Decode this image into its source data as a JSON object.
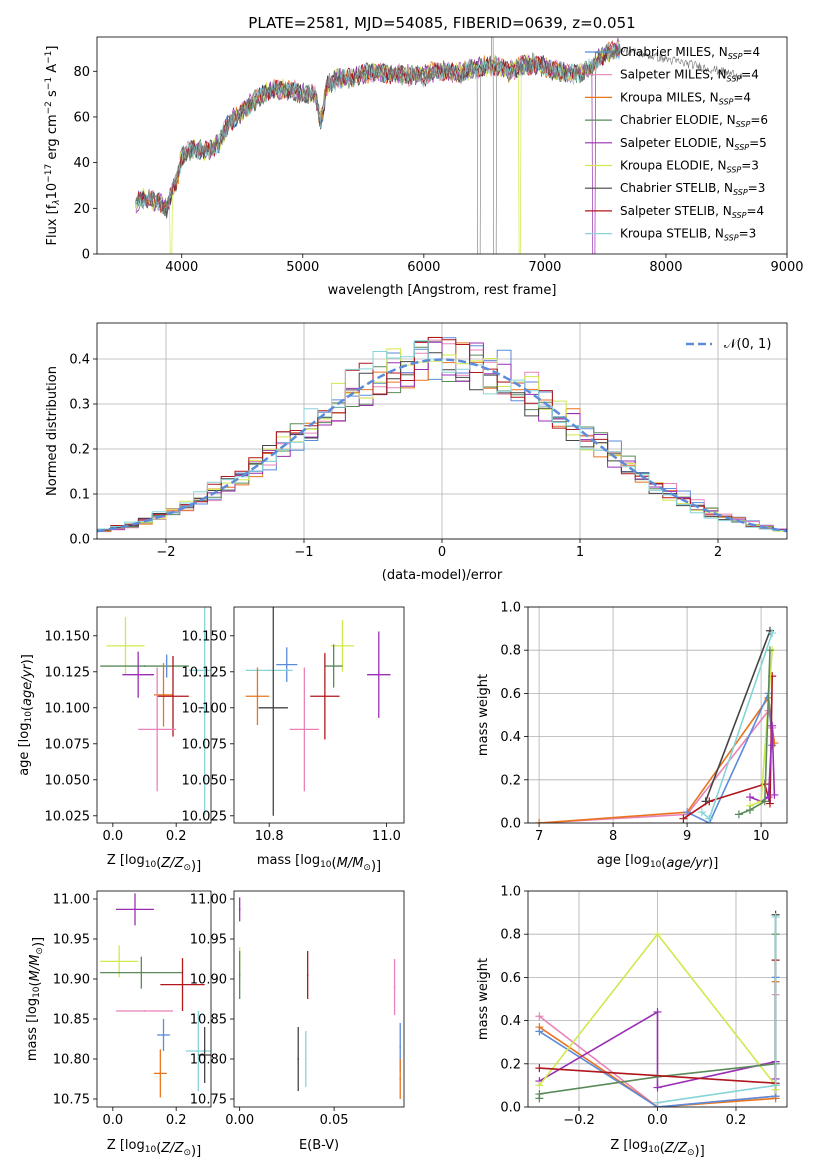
{
  "figure_title": "PLATE=2581, MJD=54085, FIBERID=0639, z=0.051",
  "colors": {
    "chabrier_miles": "#5b8bd9",
    "salpeter_miles": "#e882b8",
    "kroupa_miles": "#e8741e",
    "chabrier_elodie": "#5a8a5a",
    "salpeter_elodie": "#9a2fb4",
    "kroupa_elodie": "#d2e84e",
    "chabrier_stelib": "#444444",
    "salpeter_stelib": "#b0161c",
    "kroupa_stelib": "#86d4d8",
    "normal_curve": "#5b8bd9"
  },
  "chart_data": [
    {
      "id": "spectrum",
      "type": "line",
      "title": "PLATE=2581, MJD=54085, FIBERID=0639, z=0.051",
      "xlabel": "wavelength [Angstrom, rest frame]",
      "ylabel_parts": {
        "a": "Flux [f",
        "b": "λ",
        "c": "10",
        "d": "−17",
        "e": " erg cm",
        "f": "−2",
        "g": " s",
        "h": "−1",
        "i": " A",
        "j": "−1",
        "k": "]"
      },
      "xlim": [
        3300,
        9000
      ],
      "ylim": [
        0,
        95
      ],
      "xticks": [
        4000,
        5000,
        6000,
        7000,
        8000,
        9000
      ],
      "yticks": [
        0,
        20,
        40,
        60,
        80
      ],
      "legend": {
        "position": "right",
        "nssp_sub": "SSP"
      },
      "spectrum_envelope": {
        "x": [
          3620,
          3700,
          3800,
          3880,
          3920,
          3960,
          4000,
          4100,
          4200,
          4300,
          4400,
          4500,
          4600,
          4700,
          4800,
          4900,
          5000,
          5100,
          5150,
          5200,
          5300,
          5400,
          5500,
          5600,
          5700,
          5800,
          5900,
          6000,
          6100,
          6200,
          6300,
          6400,
          6500,
          6600,
          6700,
          6800,
          6900,
          7000,
          7100,
          7200,
          7300,
          7400,
          7450,
          7500,
          7600
        ],
        "y": [
          22,
          25,
          23,
          20,
          28,
          32,
          43,
          46,
          45,
          48,
          58,
          62,
          67,
          71,
          72,
          72,
          70,
          70,
          58,
          74,
          77,
          77,
          79,
          80,
          79,
          79,
          78,
          78,
          80,
          80,
          79,
          81,
          82,
          83,
          80,
          82,
          83,
          82,
          80,
          79,
          79,
          82,
          86,
          88,
          90
        ]
      },
      "series": [
        {
          "name": "Chabrier MILES, N",
          "nssp": "=4",
          "color": "#5b8bd9"
        },
        {
          "name": "Salpeter MILES, N",
          "nssp": "=4",
          "color": "#e882b8"
        },
        {
          "name": "Kroupa MILES, N",
          "nssp": "=4",
          "color": "#e8741e"
        },
        {
          "name": "Chabrier ELODIE, N",
          "nssp": "=6",
          "color": "#5a8a5a"
        },
        {
          "name": "Salpeter ELODIE, N",
          "nssp": "=5",
          "color": "#9a2fb4"
        },
        {
          "name": "Kroupa ELODIE, N",
          "nssp": "=3",
          "color": "#d2e84e"
        },
        {
          "name": "Chabrier STELIB, N",
          "nssp": "=3",
          "color": "#444444"
        },
        {
          "name": "Salpeter STELIB, N",
          "nssp": "=4",
          "color": "#b0161c"
        },
        {
          "name": "Kroupa STELIB, N",
          "nssp": "=3",
          "color": "#86d4d8"
        }
      ]
    },
    {
      "id": "residuals",
      "type": "line",
      "xlabel": "(data-model)/error",
      "ylabel": "Normed distribution",
      "xlim": [
        -2.5,
        2.5
      ],
      "ylim": [
        0,
        0.48
      ],
      "xticks": [
        -2,
        -1,
        0,
        1,
        2
      ],
      "yticks": [
        0.0,
        0.1,
        0.2,
        0.3,
        0.4
      ],
      "xticklabels": [
        "−2",
        "−1",
        "0",
        "1",
        "2"
      ],
      "yticklabels": [
        "0.0",
        "0.1",
        "0.2",
        "0.3",
        "0.4"
      ],
      "grid": true,
      "legend": {
        "position": "top-right",
        "label": "𝒩(0, 1)"
      },
      "bin_edges_range": [
        -2.5,
        2.5
      ],
      "bin_count": 50,
      "histogram_sigma": 1.0,
      "series_colors": [
        "#5b8bd9",
        "#e882b8",
        "#e8741e",
        "#5a8a5a",
        "#9a2fb4",
        "#d2e84e",
        "#444444",
        "#b0161c",
        "#86d4d8"
      ]
    },
    {
      "id": "age_vs_Z",
      "type": "scatter",
      "xlabel": "Z [log",
      "xlabel_sub": "10",
      "xlabel_tail": "(Z/Z",
      "xlabel_sun": "⊙",
      "xlabel_end": ")]",
      "ylabel": "age  [log",
      "ylabel_sub": "10",
      "ylabel_tail": "(age/yr)]",
      "xlim": [
        -0.05,
        0.31
      ],
      "ylim": [
        10.02,
        10.17
      ],
      "xticks": [
        0.0,
        0.2
      ],
      "yticks": [
        10.025,
        10.05,
        10.075,
        10.1,
        10.125,
        10.15
      ],
      "xticklabels": [
        "0.0",
        "0.2"
      ],
      "yticklabels": [
        "10.025",
        "10.050",
        "10.075",
        "10.100",
        "10.125",
        "10.150"
      ],
      "points": [
        {
          "x": 0.04,
          "y": 10.143,
          "xerr": 0.06,
          "yerr": 0.02,
          "color": "#d2e84e"
        },
        {
          "x": 0.1,
          "y": 10.129,
          "xerr": 0.14,
          "yerr": 0.0,
          "color": "#5a8a5a"
        },
        {
          "x": 0.17,
          "y": 10.129,
          "xerr": 0.0,
          "yerr": 0.008,
          "color": "#5b8bd9"
        },
        {
          "x": 0.08,
          "y": 10.123,
          "xerr": 0.05,
          "yerr": 0.016,
          "color": "#9a2fb4"
        },
        {
          "x": 0.16,
          "y": 10.109,
          "xerr": 0.03,
          "yerr": 0.022,
          "color": "#e8741e"
        },
        {
          "x": 0.19,
          "y": 10.108,
          "xerr": 0.05,
          "yerr": 0.028,
          "color": "#b0161c"
        },
        {
          "x": 0.28,
          "y": 10.1,
          "xerr": 0.01,
          "yerr": 0.0,
          "color": "#444444"
        },
        {
          "x": 0.29,
          "y": 10.126,
          "xerr": 0.05,
          "yerr": 0.1,
          "color": "#86d4d8"
        },
        {
          "x": 0.14,
          "y": 10.085,
          "xerr": 0.06,
          "yerr": 0.043,
          "color": "#e882b8"
        }
      ]
    },
    {
      "id": "age_vs_mass",
      "type": "scatter",
      "xlabel": "mass [log",
      "xlabel_sub": "10",
      "xlabel_tail": "(M/M",
      "xlabel_sun": "⊙",
      "xlabel_end": ")]",
      "xlim": [
        10.74,
        11.03
      ],
      "ylim": [
        10.02,
        10.17
      ],
      "xticks": [
        10.8,
        11.0
      ],
      "yticks": [
        10.025,
        10.05,
        10.075,
        10.1,
        10.125,
        10.15
      ],
      "xticklabels": [
        "10.8",
        "11.0"
      ],
      "yticklabels": [
        "10.025",
        "10.050",
        "10.075",
        "10.100",
        "10.125",
        "10.150"
      ],
      "points": [
        {
          "x": 10.925,
          "y": 10.143,
          "xerr": 0.02,
          "yerr": 0.018,
          "color": "#d2e84e"
        },
        {
          "x": 10.91,
          "y": 10.129,
          "xerr": 0.015,
          "yerr": 0.015,
          "color": "#5a8a5a"
        },
        {
          "x": 10.83,
          "y": 10.13,
          "xerr": 0.018,
          "yerr": 0.012,
          "color": "#5b8bd9"
        },
        {
          "x": 10.8,
          "y": 10.126,
          "xerr": 0.04,
          "yerr": 0.0,
          "color": "#86d4d8"
        },
        {
          "x": 10.987,
          "y": 10.123,
          "xerr": 0.02,
          "yerr": 0.03,
          "color": "#9a2fb4"
        },
        {
          "x": 10.78,
          "y": 10.108,
          "xerr": 0.02,
          "yerr": 0.02,
          "color": "#e8741e"
        },
        {
          "x": 10.895,
          "y": 10.108,
          "xerr": 0.025,
          "yerr": 0.03,
          "color": "#b0161c"
        },
        {
          "x": 10.807,
          "y": 10.1,
          "xerr": 0.025,
          "yerr": 0.075,
          "color": "#444444"
        },
        {
          "x": 10.86,
          "y": 10.085,
          "xerr": 0.025,
          "yerr": 0.043,
          "color": "#e882b8"
        }
      ]
    },
    {
      "id": "weight_vs_age",
      "type": "line",
      "xlabel": "age  [log",
      "xlabel_sub": "10",
      "xlabel_tail": "(age/yr)]",
      "ylabel": "mass weight",
      "xlim": [
        6.85,
        10.35
      ],
      "ylim": [
        0,
        1.0
      ],
      "xticks": [
        7,
        8,
        9,
        10
      ],
      "yticks": [
        0.0,
        0.2,
        0.4,
        0.6,
        0.8,
        1.0
      ],
      "xticklabels": [
        "7",
        "8",
        "9",
        "10"
      ],
      "yticklabels": [
        "0.0",
        "0.2",
        "0.4",
        "0.6",
        "0.8",
        "1.0"
      ],
      "grid": true,
      "series": [
        {
          "color": "#e882b8",
          "x": [
            7.0,
            9.0,
            10.1,
            10.15
          ],
          "y": [
            0.0,
            0.04,
            0.52,
            0.44
          ]
        },
        {
          "color": "#e8741e",
          "x": [
            7.0,
            9.0,
            10.1,
            10.18
          ],
          "y": [
            0.0,
            0.05,
            0.58,
            0.37
          ]
        },
        {
          "color": "#5b8bd9",
          "x": [
            9.0,
            9.3,
            10.1,
            10.15
          ],
          "y": [
            0.05,
            0.0,
            0.6,
            0.36
          ]
        },
        {
          "color": "#b0161c",
          "x": [
            8.95,
            9.3,
            10.05,
            10.12,
            10.15
          ],
          "y": [
            0.02,
            0.1,
            0.18,
            0.09,
            0.68
          ]
        },
        {
          "color": "#9a2fb4",
          "x": [
            9.85,
            10.0,
            10.1,
            10.15,
            10.18
          ],
          "y": [
            0.12,
            0.1,
            0.12,
            0.45,
            0.13
          ]
        },
        {
          "color": "#d2e84e",
          "x": [
            9.85,
            10.0,
            10.15
          ],
          "y": [
            0.08,
            0.1,
            0.8
          ]
        },
        {
          "color": "#5a8a5a",
          "x": [
            9.7,
            9.85,
            10.05,
            10.12
          ],
          "y": [
            0.04,
            0.06,
            0.1,
            0.8
          ]
        },
        {
          "color": "#444444",
          "x": [
            9.25,
            10.12
          ],
          "y": [
            0.1,
            0.89
          ]
        },
        {
          "color": "#86d4d8",
          "x": [
            9.2,
            9.3,
            10.15
          ],
          "y": [
            0.05,
            0.02,
            0.88
          ]
        }
      ]
    },
    {
      "id": "mass_vs_Z",
      "type": "scatter",
      "xlabel": "Z [log",
      "xlabel_sub": "10",
      "xlabel_tail": "(Z/Z",
      "xlabel_sun": "⊙",
      "xlabel_end": ")]",
      "ylabel": "mass [log",
      "ylabel_sub": "10",
      "ylabel_tail": "(M/M",
      "ylabel_sun": "⊙",
      "ylabel_end": ")]",
      "xlim": [
        -0.05,
        0.31
      ],
      "ylim": [
        10.74,
        11.01
      ],
      "xticks": [
        0.0,
        0.2
      ],
      "yticks": [
        10.75,
        10.8,
        10.85,
        10.9,
        10.95,
        11.0
      ],
      "xticklabels": [
        "0.0",
        "0.2"
      ],
      "yticklabels": [
        "10.75",
        "10.80",
        "10.85",
        "10.90",
        "10.95",
        "11.00"
      ],
      "points": [
        {
          "x": 0.07,
          "y": 10.987,
          "xerr": 0.06,
          "yerr": 0.02,
          "color": "#9a2fb4"
        },
        {
          "x": 0.02,
          "y": 10.922,
          "xerr": 0.06,
          "yerr": 0.02,
          "color": "#d2e84e"
        },
        {
          "x": 0.09,
          "y": 10.908,
          "xerr": 0.13,
          "yerr": 0.02,
          "color": "#5a8a5a"
        },
        {
          "x": 0.22,
          "y": 10.893,
          "xerr": 0.07,
          "yerr": 0.033,
          "color": "#b0161c"
        },
        {
          "x": 0.1,
          "y": 10.86,
          "xerr": 0.09,
          "yerr": 0.0,
          "color": "#e882b8"
        },
        {
          "x": 0.16,
          "y": 10.83,
          "xerr": 0.02,
          "yerr": 0.02,
          "color": "#5b8bd9"
        },
        {
          "x": 0.27,
          "y": 10.81,
          "xerr": 0.04,
          "yerr": 0.05,
          "color": "#86d4d8"
        },
        {
          "x": 0.29,
          "y": 10.805,
          "xerr": 0.02,
          "yerr": 0.035,
          "color": "#444444"
        },
        {
          "x": 0.15,
          "y": 10.782,
          "xerr": 0.02,
          "yerr": 0.03,
          "color": "#e8741e"
        }
      ]
    },
    {
      "id": "mass_vs_ebv",
      "type": "scatter",
      "xlabel": "E(B-V)",
      "xlim": [
        -0.003,
        0.087
      ],
      "ylim": [
        10.74,
        11.01
      ],
      "xticks": [
        0.0,
        0.05
      ],
      "yticks": [
        10.75,
        10.8,
        10.85,
        10.9,
        10.95,
        11.0
      ],
      "xticklabels": [
        "0.00",
        "0.05"
      ],
      "yticklabels": [
        "10.75",
        "10.80",
        "10.85",
        "10.90",
        "10.95",
        "11.00"
      ],
      "points": [
        {
          "x": 0.0,
          "y": 10.987,
          "xerr": 0.0,
          "yerr": 0.015,
          "color": "#9a2fb4"
        },
        {
          "x": 0.0,
          "y": 10.92,
          "xerr": 0.0,
          "yerr": 0.02,
          "color": "#d2e84e"
        },
        {
          "x": 0.0,
          "y": 10.905,
          "xerr": 0.0,
          "yerr": 0.03,
          "color": "#5a8a5a"
        },
        {
          "x": 0.036,
          "y": 10.905,
          "xerr": 0.0,
          "yerr": 0.03,
          "color": "#b0161c"
        },
        {
          "x": 0.082,
          "y": 10.89,
          "xerr": 0.0,
          "yerr": 0.035,
          "color": "#e882b8"
        },
        {
          "x": 0.031,
          "y": 10.8,
          "xerr": 0.0,
          "yerr": 0.04,
          "color": "#444444"
        },
        {
          "x": 0.035,
          "y": 10.8,
          "xerr": 0.0,
          "yerr": 0.035,
          "color": "#86d4d8"
        },
        {
          "x": 0.085,
          "y": 10.815,
          "xerr": 0.0,
          "yerr": 0.03,
          "color": "#5b8bd9"
        },
        {
          "x": 0.085,
          "y": 10.775,
          "xerr": 0.0,
          "yerr": 0.025,
          "color": "#e8741e"
        }
      ]
    },
    {
      "id": "weight_vs_Z",
      "type": "line",
      "xlabel": "Z [log",
      "xlabel_sub": "10",
      "xlabel_tail": "(Z/Z",
      "xlabel_sun": "⊙",
      "xlabel_end": ")]",
      "ylabel": "mass weight",
      "xlim": [
        -0.33,
        0.33
      ],
      "ylim": [
        0,
        1.0
      ],
      "xticks": [
        -0.2,
        0.0,
        0.2
      ],
      "yticks": [
        0.0,
        0.2,
        0.4,
        0.6,
        0.8,
        1.0
      ],
      "xticklabels": [
        "−0.2",
        "0.0",
        "0.2"
      ],
      "yticklabels": [
        "0.0",
        "0.2",
        "0.4",
        "0.6",
        "0.8",
        "1.0"
      ],
      "grid": true,
      "series": [
        {
          "color": "#e882b8",
          "x": [
            -0.301,
            0.0,
            0.301,
            0.301
          ],
          "y": [
            0.42,
            0.0,
            0.05,
            0.52
          ]
        },
        {
          "color": "#e8741e",
          "x": [
            -0.301,
            0.0,
            0.301,
            0.301
          ],
          "y": [
            0.37,
            0.0,
            0.04,
            0.58
          ]
        },
        {
          "color": "#5b8bd9",
          "x": [
            -0.301,
            0.0,
            0.301,
            0.301
          ],
          "y": [
            0.35,
            0.0,
            0.05,
            0.6
          ]
        },
        {
          "color": "#9a2fb4",
          "x": [
            -0.301,
            0.0,
            0.0,
            0.301,
            0.301
          ],
          "y": [
            0.12,
            0.44,
            0.09,
            0.21,
            0.13
          ]
        },
        {
          "color": "#d2e84e",
          "x": [
            -0.301,
            0.0,
            0.301,
            0.301
          ],
          "y": [
            0.1,
            0.8,
            0.1,
            0.08
          ]
        },
        {
          "color": "#5a8a5a",
          "x": [
            -0.301,
            -0.301,
            0.0,
            0.301,
            0.301
          ],
          "y": [
            0.04,
            0.06,
            0.14,
            0.2,
            0.8
          ]
        },
        {
          "color": "#b0161c",
          "x": [
            -0.301,
            0.301,
            0.301
          ],
          "y": [
            0.18,
            0.11,
            0.68
          ]
        },
        {
          "color": "#444444",
          "x": [
            0.301,
            0.301
          ],
          "y": [
            0.1,
            0.89
          ]
        },
        {
          "color": "#86d4d8",
          "x": [
            0.0,
            0.301,
            0.301
          ],
          "y": [
            0.02,
            0.1,
            0.88
          ]
        }
      ]
    }
  ]
}
